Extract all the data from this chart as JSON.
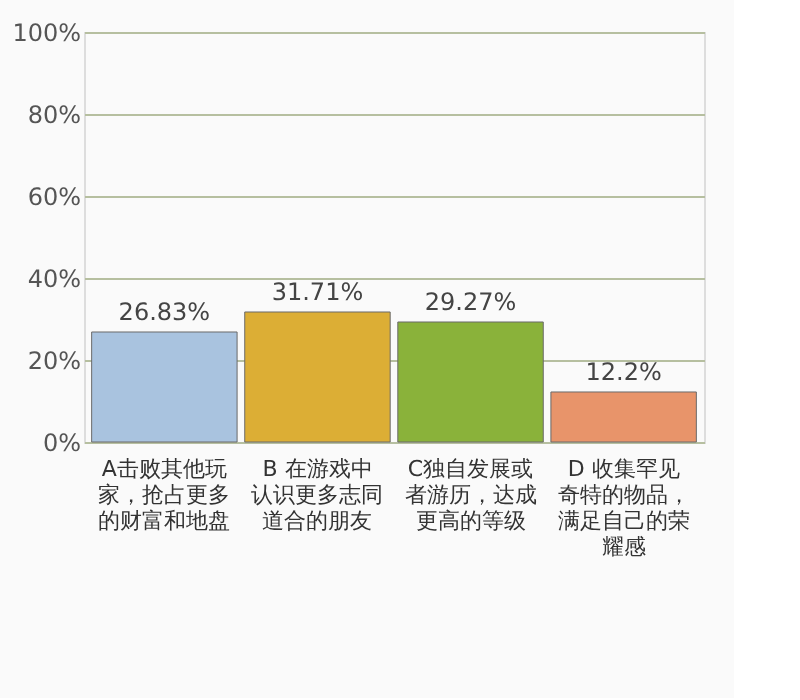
{
  "chart_data": {
    "type": "bar",
    "categories": [
      "A击败其他玩家，抢占更多的财富和地盘",
      "B 在游戏中认识更多志同道合的朋友",
      "C独自发展或者游历，达成更高的等级",
      "D 收集罕见奇特的物品，满足自己的荣耀感"
    ],
    "values": [
      26.83,
      31.71,
      29.27,
      12.2
    ],
    "value_labels": [
      "26.83%",
      "31.71%",
      "29.27%",
      "12.2%"
    ],
    "colors": [
      "#a9c3df",
      "#dcae35",
      "#8ab23a",
      "#e8946a"
    ],
    "ylim": [
      0,
      100
    ],
    "yticks": [
      {
        "value": 0,
        "label": "0%"
      },
      {
        "value": 20,
        "label": "20%"
      },
      {
        "value": 40,
        "label": "40%"
      },
      {
        "value": 60,
        "label": "60%"
      },
      {
        "value": 80,
        "label": "80%"
      },
      {
        "value": 100,
        "label": "100%"
      }
    ],
    "grid": "y"
  }
}
